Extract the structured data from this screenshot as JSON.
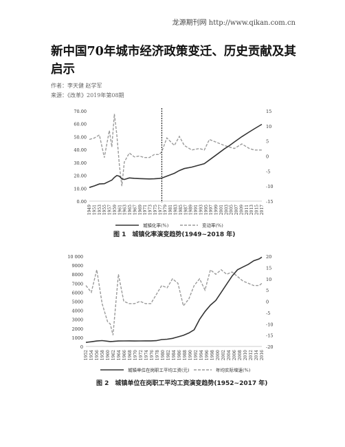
{
  "header": {
    "site": "龙源期刊网 http://www.qikan.com.cn"
  },
  "article": {
    "title": "新中国70年城市经济政策变迁、历史贡献及其启示",
    "author": "作者：李天健 赵学军",
    "source": "来源：《改革》2019年第08期"
  },
  "figures": {
    "fig1": {
      "caption": "图 1　城镇化率演变趋势(1949~2018 年)"
    },
    "fig2": {
      "caption": "图 2　城镇单位在岗职工平均工资演变趋势(1952~2017 年)"
    }
  },
  "chart_data": [
    {
      "type": "line",
      "title": "",
      "left_axis": {
        "ticks": [
          "70.00",
          "60.00",
          "50.00",
          "40.00",
          "30.00",
          "20.00",
          "10.00",
          "0.00"
        ],
        "ylim": [
          0,
          70
        ]
      },
      "right_axis": {
        "ticks": [
          "15",
          "10",
          "5",
          "0",
          "-5",
          "-10",
          "-15"
        ],
        "ylim": [
          -15,
          15
        ]
      },
      "x_tick_labels": [
        "1949",
        "1951",
        "1953",
        "1955",
        "1957",
        "1959",
        "1961",
        "1963",
        "1965",
        "1967",
        "1969",
        "1971",
        "1973",
        "1975",
        "1977",
        "1979",
        "1981",
        "1983",
        "1985",
        "1987",
        "1989",
        "1991",
        "1993",
        "1995",
        "1997",
        "1999",
        "2001",
        "2003",
        "2005",
        "2007",
        "2009",
        "2011",
        "2013",
        "2015",
        "2017"
      ],
      "legend": [
        "城镇化率(%)",
        "变动率(%)"
      ],
      "x": [
        1949,
        1951,
        1953,
        1955,
        1957,
        1958,
        1959,
        1960,
        1961,
        1962,
        1963,
        1965,
        1967,
        1969,
        1971,
        1973,
        1975,
        1977,
        1978,
        1980,
        1983,
        1985,
        1987,
        1990,
        1993,
        1995,
        1997,
        2000,
        2003,
        2005,
        2007,
        2010,
        2013,
        2015,
        2018
      ],
      "series": [
        {
          "name": "城镇化率(%)",
          "axis": "left",
          "values": [
            10.6,
            11.8,
            13.3,
            13.5,
            15.4,
            16.3,
            18.4,
            19.8,
            19.3,
            17.3,
            16.8,
            18.0,
            17.7,
            17.5,
            17.3,
            17.2,
            17.3,
            17.6,
            17.9,
            19.4,
            21.6,
            23.7,
            25.3,
            26.4,
            28.0,
            29.0,
            31.9,
            36.2,
            40.5,
            43.0,
            45.9,
            50.0,
            53.7,
            56.1,
            59.6
          ]
        },
        {
          "name": "变动率(%)",
          "axis": "right",
          "values": [
            5.5,
            6.0,
            7.0,
            -0.5,
            8.5,
            3.0,
            14.0,
            7.0,
            -3.0,
            -10.0,
            -2.0,
            1.0,
            -0.3,
            0.0,
            -0.5,
            -0.5,
            0.5,
            0.5,
            1.5,
            6.0,
            3.5,
            6.5,
            3.5,
            2.0,
            2.5,
            2.0,
            5.5,
            4.5,
            3.5,
            3.0,
            2.5,
            4.0,
            2.5,
            2.0,
            2.0
          ]
        }
      ],
      "marker_year": 1978
    },
    {
      "type": "line",
      "title": "",
      "left_axis": {
        "ticks": [
          "10 000",
          "9000",
          "8000",
          "7000",
          "6000",
          "5000",
          "4000",
          "3000",
          "2000",
          "1000",
          "0"
        ],
        "ylim": [
          0,
          10000
        ]
      },
      "right_axis": {
        "ticks": [
          "20",
          "15",
          "10",
          "5",
          "0",
          "-5",
          "-10",
          "-15",
          "-20"
        ],
        "ylim": [
          -20,
          20
        ]
      },
      "x_tick_labels": [
        "1952",
        "1954",
        "1956",
        "1958",
        "1960",
        "1962",
        "1964",
        "1966",
        "1968",
        "1970",
        "1972",
        "1974",
        "1976",
        "1978",
        "1980",
        "1982",
        "1984",
        "1986",
        "1988",
        "1990",
        "1992",
        "1994",
        "1996",
        "1998",
        "2000",
        "2002",
        "2004",
        "2006",
        "2008",
        "2010",
        "2012",
        "2014",
        "2016"
      ],
      "legend": [
        "城镇单位在岗职工平均工资(元)",
        "年均实际增速(%)"
      ],
      "x": [
        1952,
        1954,
        1956,
        1958,
        1960,
        1961,
        1962,
        1964,
        1966,
        1968,
        1970,
        1972,
        1974,
        1976,
        1978,
        1980,
        1982,
        1984,
        1986,
        1988,
        1990,
        1992,
        1994,
        1996,
        1998,
        2000,
        2002,
        2004,
        2006,
        2008,
        2010,
        2012,
        2014,
        2016,
        2017
      ],
      "series": [
        {
          "name": "城镇单位在岗职工平均工资(元)",
          "axis": "left",
          "values": [
            450,
            520,
            600,
            650,
            580,
            540,
            560,
            600,
            610,
            620,
            600,
            610,
            620,
            620,
            640,
            760,
            800,
            890,
            1060,
            1230,
            1490,
            1850,
            3000,
            3870,
            4580,
            5100,
            6000,
            6900,
            7800,
            8500,
            8800,
            9100,
            9500,
            9700,
            9900
          ]
        },
        {
          "name": "年均实际增速(%)",
          "axis": "right",
          "values": [
            7,
            4,
            14,
            -1,
            -9,
            -10,
            -15,
            12,
            0,
            -1,
            -1,
            0,
            -1,
            -1,
            3,
            7,
            6,
            10,
            8,
            -2,
            1,
            7,
            10,
            5,
            14,
            12,
            14,
            12,
            13,
            11,
            9,
            8,
            7,
            7,
            8
          ]
        }
      ]
    }
  ]
}
